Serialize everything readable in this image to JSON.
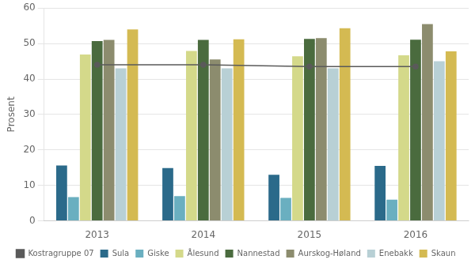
{
  "chart_data": {
    "type": "bar",
    "categories": [
      "2013",
      "2014",
      "2015",
      "2016"
    ],
    "series": [
      {
        "name": "Sula",
        "color": "#2b6a8a",
        "values": [
          15.6,
          14.9,
          13.0,
          15.5
        ]
      },
      {
        "name": "Giske",
        "color": "#6aafc0",
        "values": [
          6.7,
          7.0,
          6.5,
          6.0
        ]
      },
      {
        "name": "Ålesund",
        "color": "#d4d98a",
        "values": [
          46.9,
          47.9,
          46.4,
          46.7
        ]
      },
      {
        "name": "Nannestad",
        "color": "#4a6b3e",
        "values": [
          50.7,
          51.0,
          51.3,
          51.1
        ]
      },
      {
        "name": "Aurskog-Høland",
        "color": "#8c8c6e",
        "values": [
          51.0,
          45.5,
          51.5,
          55.5
        ]
      },
      {
        "name": "Enebakk",
        "color": "#b8d0d5",
        "values": [
          43.0,
          43.0,
          43.0,
          45.0
        ]
      },
      {
        "name": "Skaun",
        "color": "#d4ba52",
        "values": [
          54.0,
          51.2,
          54.3,
          47.8
        ]
      },
      {
        "name": "Kostragruppe 07",
        "color": "#5a5a5a",
        "type": "line",
        "marker": "circle",
        "line_style": "solid",
        "values": [
          44.0,
          44.0,
          43.5,
          43.5
        ]
      }
    ],
    "ylabel": "Prosent",
    "ylim": [
      0,
      60
    ],
    "yticks": [
      0,
      10,
      20,
      30,
      40,
      50,
      60
    ],
    "grid": true,
    "legend": "bottom"
  }
}
